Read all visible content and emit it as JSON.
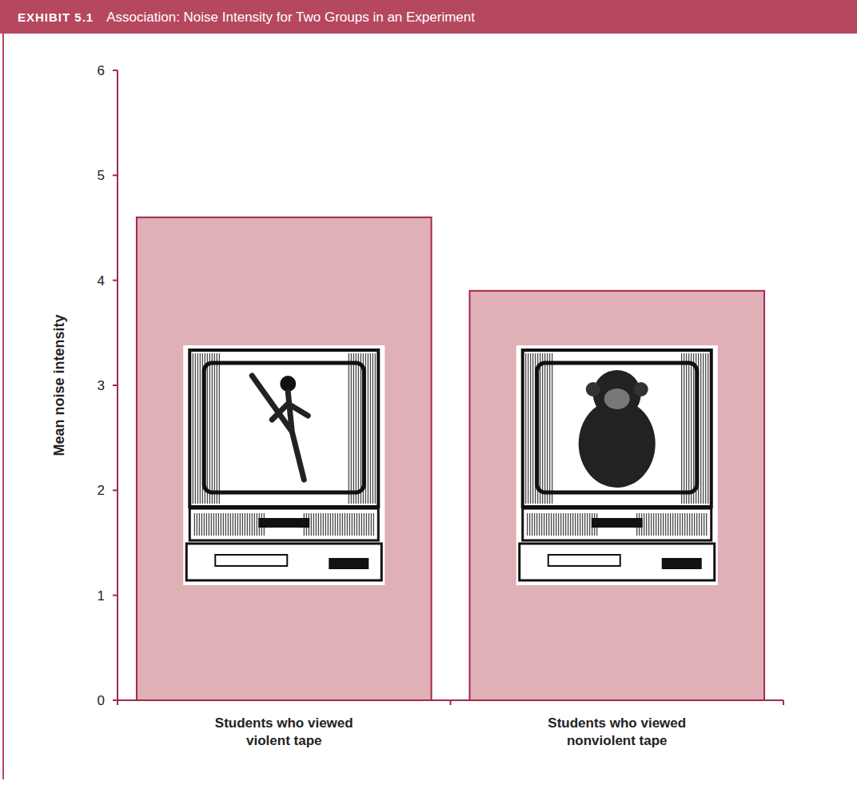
{
  "chart_data": {
    "type": "bar",
    "label": "EXHIBIT 5.1",
    "title": "Association: Noise Intensity for Two Groups in an Experiment",
    "ylabel": "Mean noise intensity",
    "categories": [
      "Students who viewed violent tape",
      "Students who viewed nonviolent tape"
    ],
    "values": [
      4.6,
      3.9
    ],
    "color": "#dfb0b5",
    "ylim": [
      0,
      6
    ],
    "yticks": [
      0,
      1,
      2,
      3,
      4,
      5,
      6
    ],
    "grid": false
  }
}
